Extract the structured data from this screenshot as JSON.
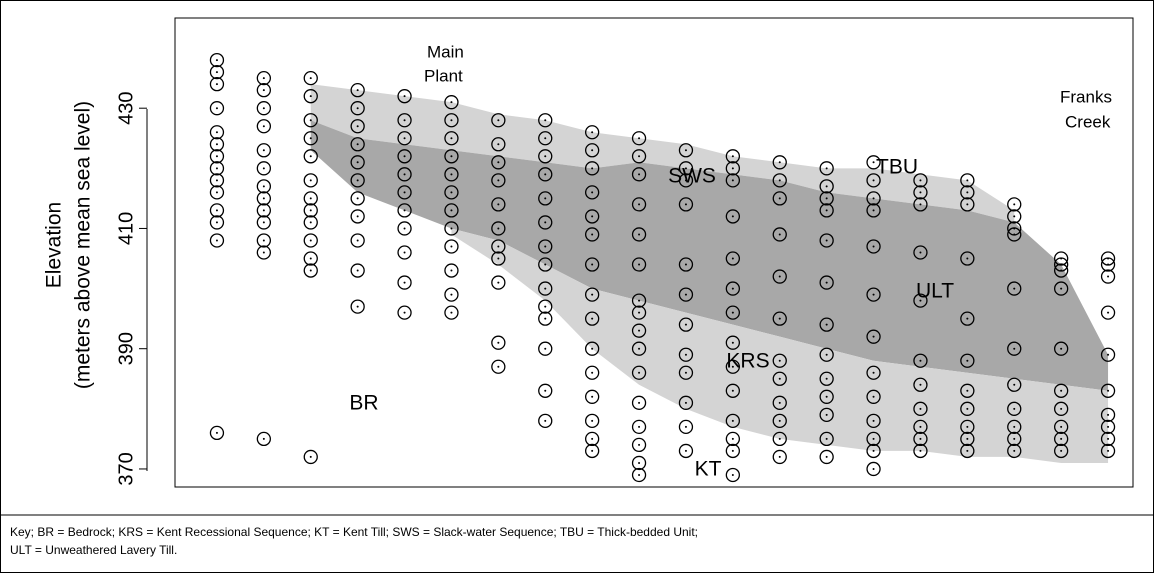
{
  "chart_data": {
    "type": "section",
    "ylabel": [
      "Elevation",
      "(meters above mean sea level)"
    ],
    "ylim": [
      367,
      445
    ],
    "yticks": [
      370,
      390,
      410,
      430
    ],
    "categories": [
      null,
      null,
      null,
      null,
      null,
      null,
      null,
      null,
      null,
      null,
      null,
      null,
      null,
      null,
      null,
      null,
      null,
      null,
      null,
      null
    ],
    "points": [
      [
        438,
        436,
        434,
        430,
        426,
        424,
        422,
        420,
        418,
        416,
        413,
        411,
        408,
        376
      ],
      [
        435,
        433,
        430,
        427,
        423,
        420,
        417,
        415,
        413,
        411,
        408,
        406,
        375
      ],
      [
        435,
        432,
        428,
        425,
        422,
        418,
        415,
        413,
        411,
        408,
        405,
        403,
        372
      ],
      [
        433,
        430,
        427,
        424,
        421,
        418,
        415,
        412,
        408,
        403,
        397
      ],
      [
        432,
        428,
        425,
        422,
        419,
        416,
        413,
        410,
        406,
        401,
        396
      ],
      [
        431,
        428,
        425,
        422,
        419,
        416,
        413,
        410,
        407,
        403,
        399,
        396
      ],
      [
        428,
        424,
        421,
        418,
        414,
        410,
        407,
        405,
        401,
        391,
        387
      ],
      [
        428,
        425,
        422,
        419,
        415,
        411,
        407,
        404,
        400,
        397,
        395,
        390,
        383,
        378
      ],
      [
        426,
        423,
        420,
        416,
        412,
        409,
        404,
        399,
        395,
        390,
        386,
        382,
        378,
        375,
        373
      ],
      [
        425,
        422,
        419,
        414,
        409,
        404,
        398,
        396,
        393,
        390,
        386,
        381,
        377,
        374,
        371,
        369
      ],
      [
        423,
        420,
        418,
        414,
        404,
        399,
        394,
        389,
        386,
        381,
        377,
        373
      ],
      [
        422,
        420,
        418,
        412,
        405,
        400,
        396,
        391,
        387,
        383,
        378,
        375,
        373,
        369
      ],
      [
        421,
        418,
        415,
        409,
        402,
        395,
        388,
        385,
        381,
        378,
        375,
        372
      ],
      [
        420,
        417,
        415,
        413,
        408,
        401,
        394,
        389,
        385,
        382,
        379,
        375,
        372
      ],
      [
        421,
        418,
        415,
        413,
        407,
        399,
        392,
        386,
        382,
        378,
        375,
        373,
        370
      ],
      [
        418,
        416,
        414,
        406,
        398,
        388,
        384,
        380,
        377,
        375,
        373
      ],
      [
        418,
        416,
        414,
        405,
        395,
        388,
        383,
        380,
        377,
        375,
        373
      ],
      [
        414,
        412,
        410,
        409,
        400,
        390,
        384,
        380,
        377,
        375,
        373
      ],
      [
        405,
        404,
        403,
        400,
        390,
        383,
        380,
        377,
        375,
        373
      ],
      [
        405,
        404,
        402,
        396,
        389,
        383,
        379,
        377,
        375,
        373
      ]
    ],
    "layers": [
      {
        "name": "SWS",
        "color": "#d4d4d4",
        "top": [
          null,
          null,
          434,
          433,
          432,
          431,
          429,
          428,
          426,
          425,
          424,
          422,
          421,
          420,
          420,
          419,
          418,
          413,
          null,
          null
        ],
        "bottom": [
          null,
          null,
          428,
          425,
          424,
          423,
          422,
          421,
          420,
          421,
          420,
          419,
          418,
          416,
          415,
          414,
          413,
          411,
          null,
          null
        ]
      },
      {
        "name": "ULT",
        "color": "#a8a8a8",
        "top": [
          null,
          null,
          428,
          425,
          424,
          423,
          422,
          421,
          420,
          421,
          420,
          419,
          418,
          416,
          415,
          414,
          413,
          411,
          404,
          389
        ],
        "bottom": [
          null,
          null,
          423,
          416,
          413,
          410,
          408,
          404,
          400,
          398,
          396,
          394,
          392,
          390,
          388,
          387,
          386,
          385,
          384,
          383
        ]
      },
      {
        "name": "KRS",
        "color": "#d4d4d4",
        "top": [
          null,
          null,
          null,
          null,
          null,
          410,
          408,
          404,
          400,
          398,
          396,
          394,
          392,
          390,
          388,
          387,
          386,
          385,
          384,
          383
        ],
        "bottom": [
          null,
          null,
          null,
          null,
          null,
          409,
          404,
          398,
          390,
          384,
          380,
          377,
          375,
          374,
          373,
          373,
          372,
          372,
          371,
          371
        ]
      }
    ],
    "labels": [
      "TBU",
      "KT",
      "BR"
    ],
    "places": [
      [
        "Main",
        "Plant"
      ],
      [
        "Franks",
        "Creek"
      ]
    ],
    "key": [
      "Key; BR = Bedrock; KRS = Kent Recessional Sequence; KT = Kent Till; SWS = Slack-water Sequence; TBU = Thick-bedded Unit;",
      "ULT = Unweathered Lavery Till."
    ]
  }
}
